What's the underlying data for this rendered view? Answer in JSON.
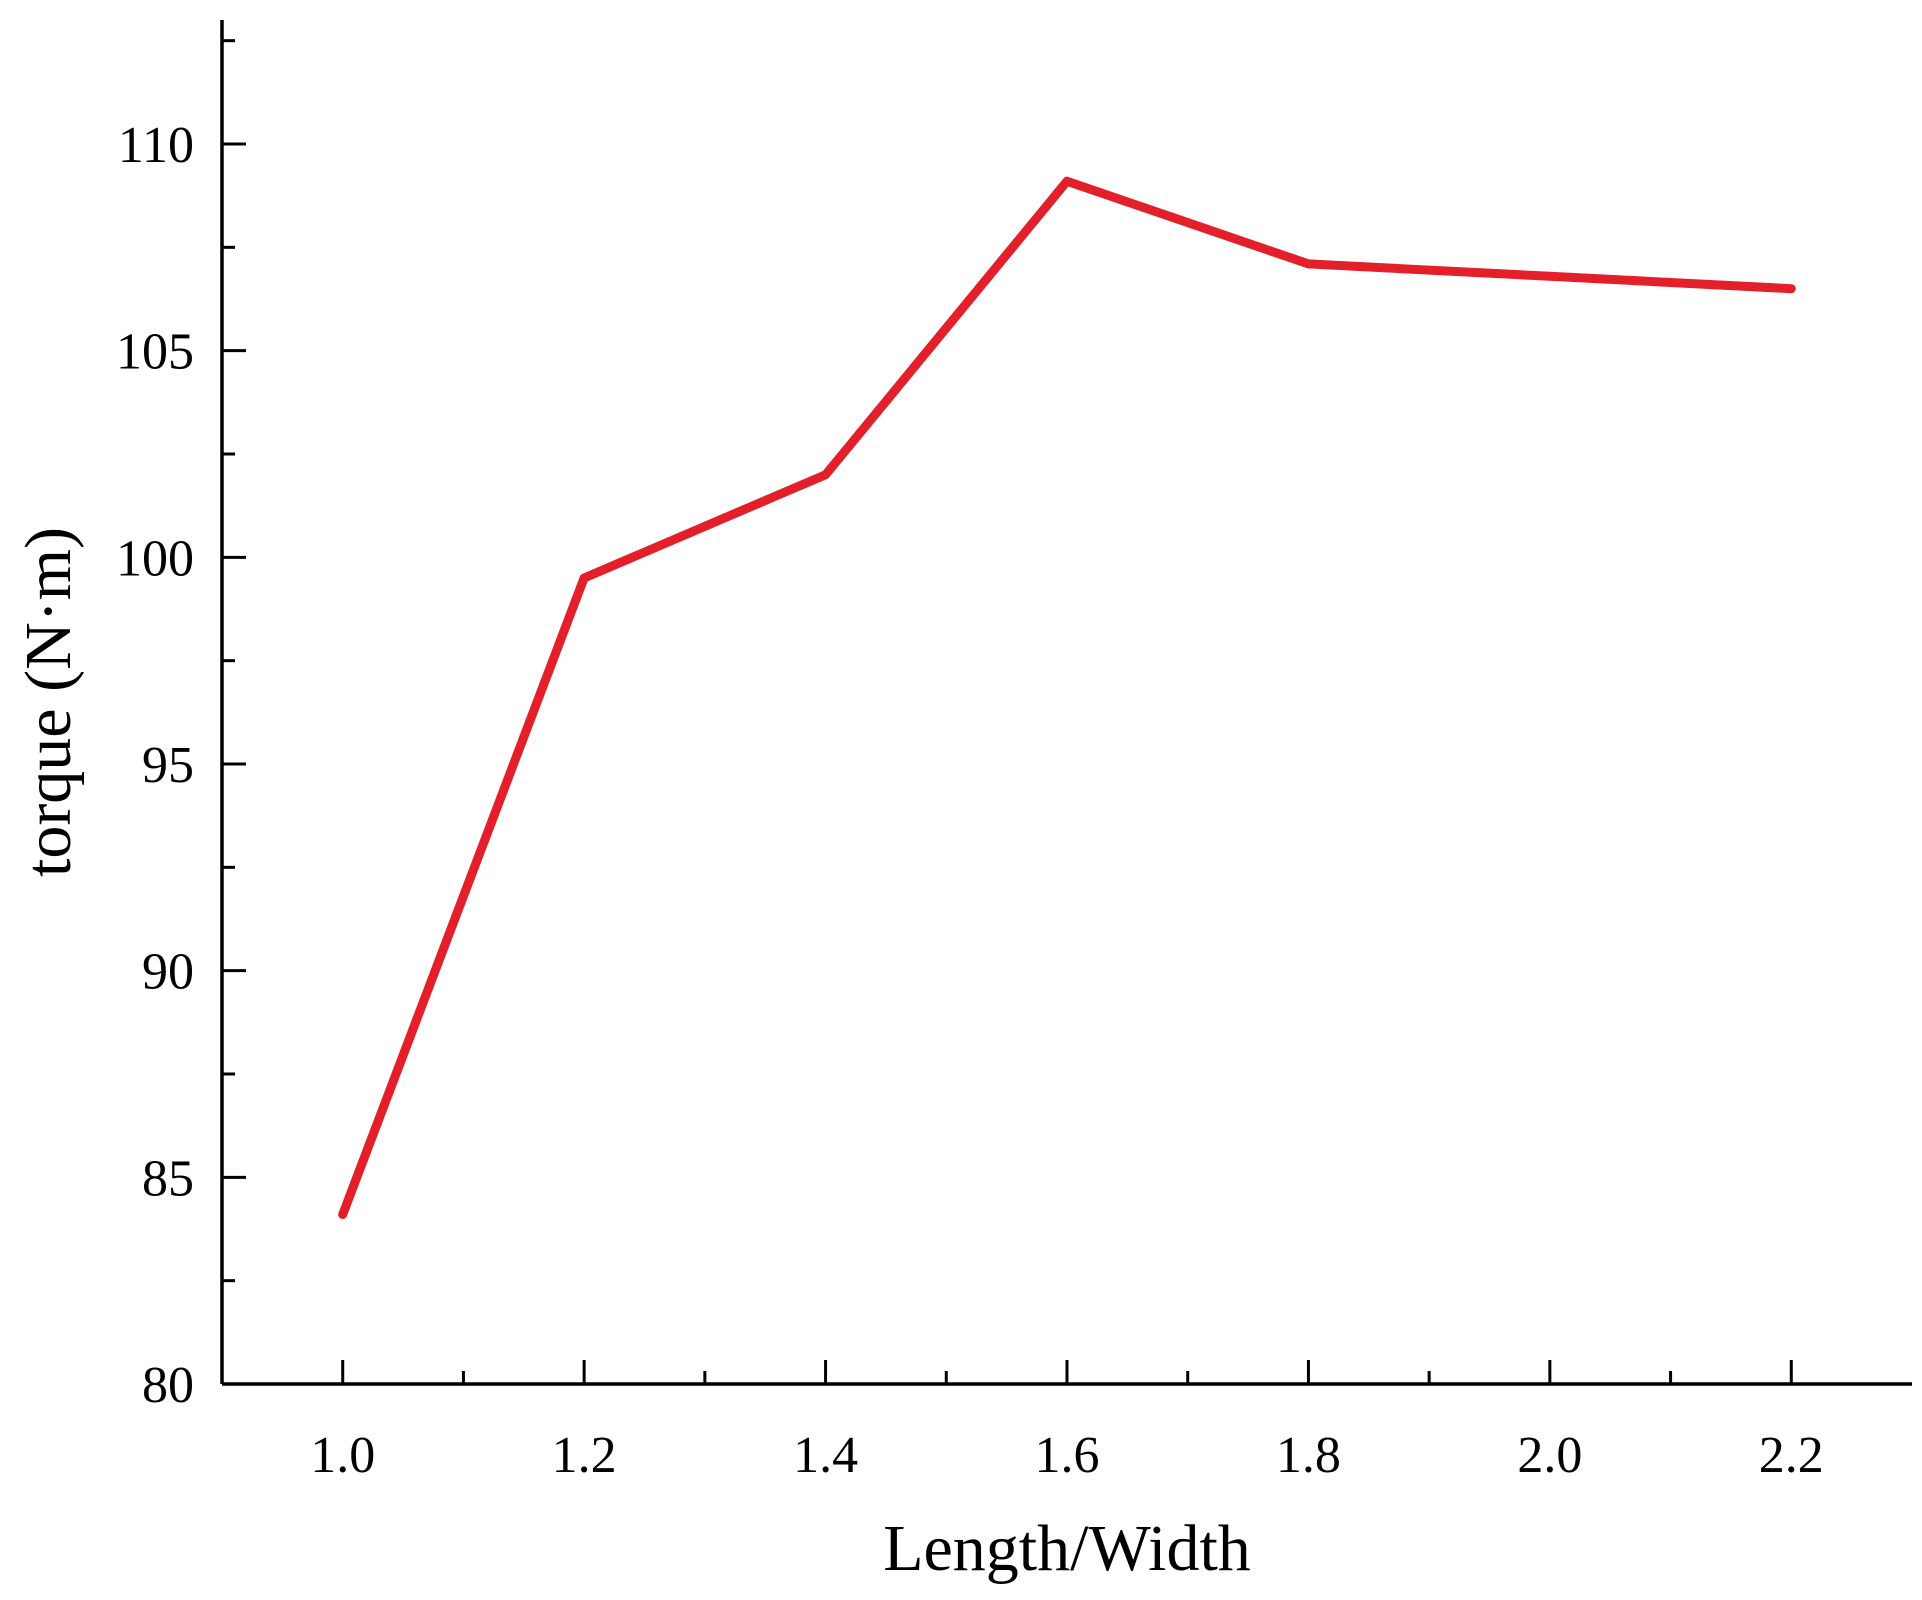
{
  "chart_data": {
    "type": "line",
    "title": "",
    "xlabel": "Length/Width",
    "ylabel": "torque (N·m)",
    "xlim": [
      0.9,
      2.3
    ],
    "ylim": [
      80,
      113
    ],
    "x_ticks": [
      1.0,
      1.2,
      1.4,
      1.6,
      1.8,
      2.0,
      2.2
    ],
    "x_tick_labels": [
      "1.0",
      "1.2",
      "1.4",
      "1.6",
      "1.8",
      "2.0",
      "2.2"
    ],
    "x_minor_ticks": [
      1.1,
      1.3,
      1.5,
      1.7,
      1.9,
      2.1
    ],
    "y_ticks": [
      80,
      85,
      90,
      95,
      100,
      105,
      110
    ],
    "y_tick_labels": [
      "80",
      "85",
      "90",
      "95",
      "100",
      "105",
      "110"
    ],
    "y_minor_ticks": [
      82.5,
      87.5,
      92.5,
      97.5,
      102.5,
      107.5,
      112.5
    ],
    "grid": false,
    "series": [
      {
        "x": [
          1.0,
          1.2,
          1.4,
          1.6,
          1.8,
          2.0,
          2.2
        ],
        "y": [
          84.1,
          99.5,
          102.0,
          109.1,
          107.1,
          106.8,
          106.5
        ],
        "color": "#e3202a"
      }
    ]
  }
}
